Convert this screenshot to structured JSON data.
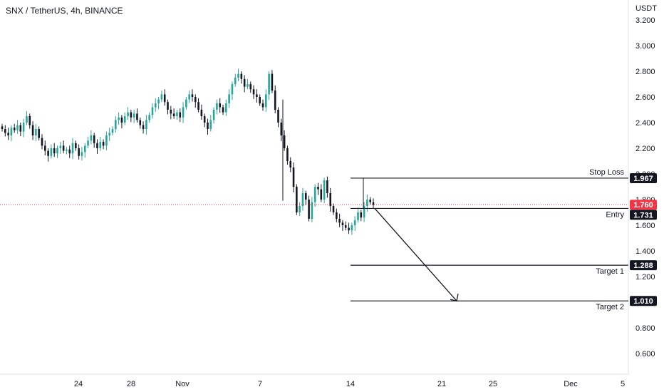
{
  "header": {
    "title": "SNX / TetherUS, 4h, BINANCE"
  },
  "chart_data": {
    "type": "candlestick",
    "currency": "USDT",
    "ylim": [
      0.5,
      3.3
    ],
    "y_ticks": [
      "3.200",
      "3.000",
      "2.800",
      "2.600",
      "2.400",
      "2.200",
      "2.000",
      "1.800",
      "1.600",
      "1.400",
      "1.200",
      "1.000",
      "0.800",
      "0.600"
    ],
    "x_ticks": [
      "24",
      "28",
      "Nov",
      "7",
      "14",
      "21",
      "25",
      "Dec",
      "5"
    ],
    "last_price": 1.76,
    "last_price_label": "1.760",
    "candle_color_up": "#26a69a",
    "candle_color_down": "#131722",
    "last_price_color": "#f23645",
    "close_series": [
      2.35,
      2.32,
      2.3,
      2.36,
      2.34,
      2.38,
      2.33,
      2.4,
      2.45,
      2.38,
      2.3,
      2.35,
      2.28,
      2.22,
      2.18,
      2.14,
      2.2,
      2.16,
      2.2,
      2.22,
      2.18,
      2.19,
      2.16,
      2.24,
      2.2,
      2.14,
      2.17,
      2.22,
      2.26,
      2.3,
      2.24,
      2.2,
      2.25,
      2.22,
      2.3,
      2.32,
      2.35,
      2.42,
      2.44,
      2.4,
      2.45,
      2.48,
      2.44,
      2.47,
      2.42,
      2.38,
      2.35,
      2.42,
      2.46,
      2.52,
      2.55,
      2.58,
      2.62,
      2.56,
      2.5,
      2.47,
      2.45,
      2.48,
      2.44,
      2.52,
      2.58,
      2.62,
      2.6,
      2.56,
      2.5,
      2.45,
      2.4,
      2.35,
      2.42,
      2.5,
      2.55,
      2.52,
      2.48,
      2.55,
      2.62,
      2.7,
      2.75,
      2.78,
      2.74,
      2.68,
      2.7,
      2.66,
      2.62,
      2.6,
      2.55,
      2.52,
      2.62,
      2.78,
      2.65,
      2.5,
      2.4,
      2.3,
      2.2,
      2.1,
      2.05,
      1.9,
      1.7,
      1.75,
      1.85,
      1.8,
      1.65,
      1.78,
      1.9,
      1.88,
      1.8,
      1.95,
      1.85,
      1.75,
      1.7,
      1.65,
      1.62,
      1.6,
      1.58,
      1.56,
      1.6,
      1.64,
      1.7,
      1.66,
      1.75,
      1.8,
      1.78,
      1.76
    ],
    "levels": [
      {
        "name": "Stop Loss",
        "value": 1.967,
        "label": "1.967"
      },
      {
        "name": "Entry",
        "value": 1.731,
        "label": "1.731"
      },
      {
        "name": "Target 1",
        "value": 1.288,
        "label": "1.288"
      },
      {
        "name": "Target 2",
        "value": 1.01,
        "label": "1.010"
      }
    ]
  }
}
